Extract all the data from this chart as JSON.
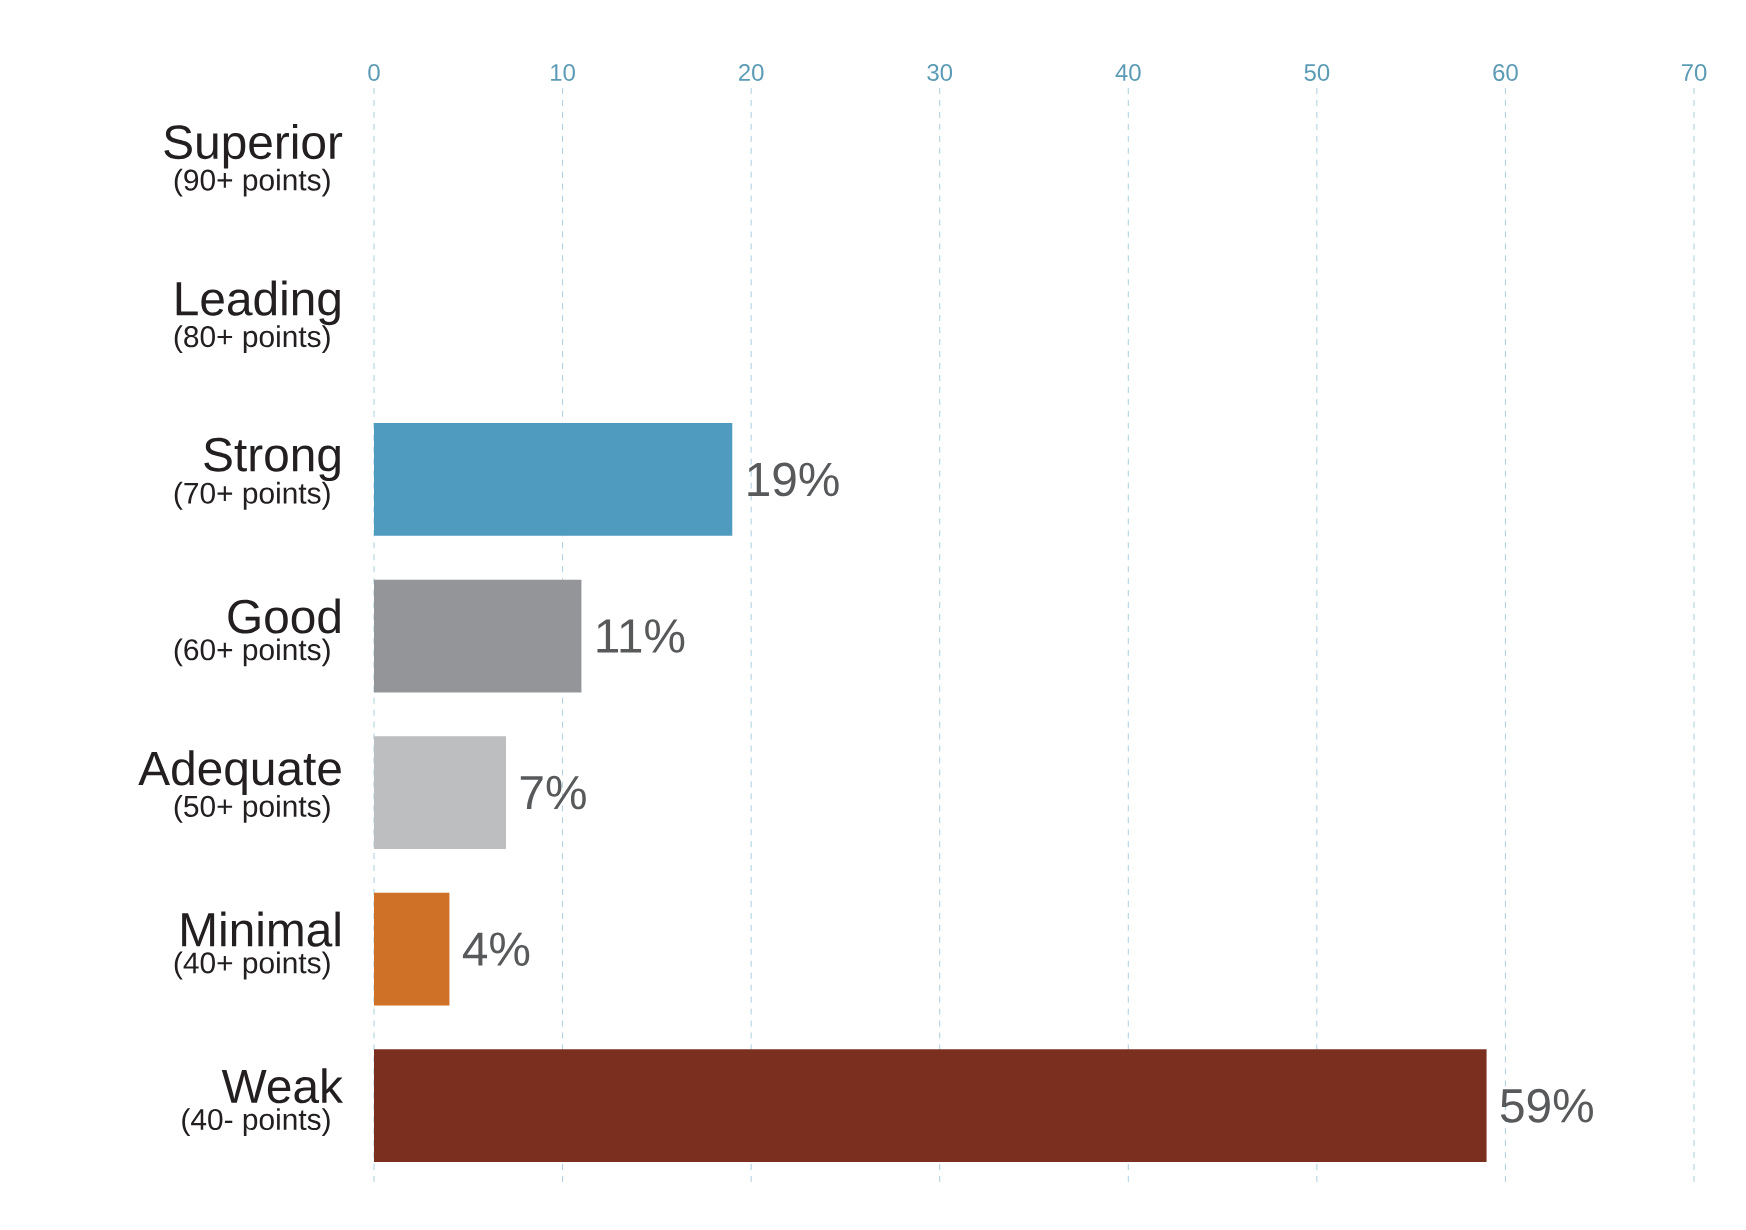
{
  "chart_data": {
    "type": "bar",
    "orientation": "horizontal",
    "categories": [
      "Superior",
      "Leading",
      "Strong",
      "Good",
      "Adequate",
      "Minimal",
      "Weak"
    ],
    "annotations": [
      "(90+ points)",
      "(80+ points)",
      "(70+ points)",
      "(60+ points)",
      "(50+ points)",
      "(40+ points)",
      "(40- points)"
    ],
    "values": [
      0,
      0,
      19,
      11,
      7,
      4,
      59
    ],
    "value_labels": [
      null,
      null,
      "19%",
      "11%",
      "7%",
      "4%",
      "59%"
    ],
    "colors": [
      "#4f9bbf",
      "#4f9bbf",
      "#4f9bbf",
      "#939598",
      "#bcbec0",
      "#d07128",
      "#7b2f1e"
    ],
    "xlim": [
      0,
      70
    ],
    "xticks": [
      0,
      10,
      20,
      30,
      40,
      50,
      60,
      70
    ],
    "grid": "x"
  }
}
